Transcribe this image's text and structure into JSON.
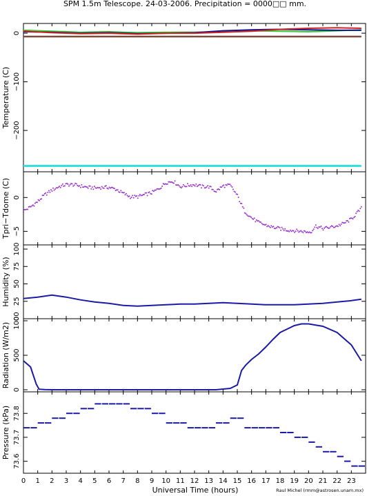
{
  "title": "SPM 1.5m Telescope. 24-03-2006. Precipitation = 0000□□ mm.",
  "credit": "Raul Michel (rmm@astrosen.unam.mx)",
  "colors": {
    "purple": "#9933cc",
    "blue": "#1a1aa6",
    "cyan": "#33e0e0",
    "green": "#33cc33",
    "red": "#cc2222",
    "darkblue": "#101090",
    "brown": "#7a4a3a"
  },
  "chart_data": [
    {
      "type": "line",
      "ylabel": "Temperature (C)",
      "xlim": [
        0,
        24
      ],
      "ylim": [
        -285,
        20
      ],
      "yticks": [
        0,
        -100,
        -200
      ],
      "yticklabels": [
        "0",
        "−100",
        "−200"
      ],
      "series": [
        {
          "color": "green",
          "x": [
            0,
            2,
            4,
            6,
            8,
            10,
            12,
            14,
            16,
            18,
            20,
            22,
            23.7
          ],
          "values": [
            6,
            4,
            2,
            3,
            1,
            2,
            2,
            3,
            5,
            4,
            3,
            5,
            7
          ]
        },
        {
          "color": "darkblue",
          "x": [
            0,
            2,
            4,
            6,
            8,
            10,
            12,
            14,
            16,
            18,
            20,
            22,
            23.7
          ],
          "values": [
            3,
            2,
            0,
            1,
            -1,
            0,
            1,
            5,
            7,
            8,
            7,
            6,
            6
          ]
        },
        {
          "color": "red",
          "x": [
            0,
            2,
            4,
            6,
            8,
            10,
            12,
            14,
            16,
            18,
            20,
            22,
            23.7
          ],
          "values": [
            4,
            1,
            -1,
            0,
            -2,
            0,
            0,
            2,
            4,
            8,
            10,
            11,
            10
          ]
        },
        {
          "color": "brown",
          "x": [
            0,
            23.7
          ],
          "values": [
            -7,
            -7
          ]
        },
        {
          "color": "cyan",
          "x": [
            0,
            23.7
          ],
          "values": [
            -273,
            -273
          ]
        }
      ]
    },
    {
      "type": "scatter",
      "ylabel": "Tpri−Tdome (C)",
      "xlim": [
        0,
        24
      ],
      "ylim": [
        -7,
        3.8
      ],
      "yticks": [
        0,
        -5
      ],
      "yticklabels": [
        "0",
        "−5"
      ],
      "series": [
        {
          "color": "purple",
          "x": [
            0,
            0.5,
            1,
            1.5,
            2,
            2.5,
            3,
            3.5,
            4,
            4.5,
            5,
            5.5,
            6,
            6.5,
            7,
            7.5,
            8,
            8.5,
            9,
            9.5,
            10,
            10.5,
            11,
            11.5,
            12,
            12.5,
            13,
            13.5,
            14,
            14.5,
            15,
            15.5,
            16,
            16.5,
            17,
            17.5,
            18,
            18.5,
            19,
            19.5,
            20,
            20.2,
            20.5,
            21,
            21.5,
            22,
            22.5,
            23,
            23.7
          ],
          "values": [
            -2,
            -1.4,
            -0.6,
            0.4,
            1.1,
            1.6,
            1.9,
            1.9,
            1.7,
            1.5,
            1.4,
            1.5,
            1.5,
            1.2,
            0.6,
            0.1,
            0.1,
            0.4,
            0.7,
            1.3,
            2.2,
            2.4,
            1.6,
            1.8,
            1.9,
            1.6,
            1.6,
            0.9,
            1.7,
            1.8,
            0.3,
            -2.0,
            -3.0,
            -3.7,
            -4.1,
            -4.4,
            -4.6,
            -4.8,
            -4.9,
            -5.0,
            -5.1,
            -5.0,
            -4.2,
            -4.6,
            -4.4,
            -4.2,
            -3.8,
            -3.2,
            -1.6
          ]
        }
      ]
    },
    {
      "type": "line",
      "ylabel": "Humidity (%)",
      "xlim": [
        0,
        24
      ],
      "ylim": [
        0,
        106
      ],
      "yticks": [
        0,
        25,
        50,
        75,
        100
      ],
      "yticklabels": [
        "0",
        "25",
        "50",
        "75",
        "100"
      ],
      "series": [
        {
          "color": "blue",
          "x": [
            0,
            1,
            2,
            3,
            4,
            5,
            6,
            7,
            8,
            9,
            10,
            11,
            12,
            13,
            14,
            15,
            16,
            17,
            18,
            19,
            20,
            21,
            22,
            23,
            23.7
          ],
          "values": [
            29,
            31,
            34,
            31,
            27,
            24,
            22,
            19,
            18,
            19,
            20,
            21,
            21,
            22,
            23,
            22,
            21,
            20,
            20,
            20,
            21,
            22,
            24,
            26,
            28
          ]
        }
      ]
    },
    {
      "type": "line",
      "ylabel": "Radiation (W/m2)",
      "xlim": [
        0,
        24
      ],
      "ylim": [
        -30,
        1030
      ],
      "yticks": [
        0,
        500,
        1000
      ],
      "yticklabels": [
        "0",
        "500",
        "1000"
      ],
      "series": [
        {
          "color": "blue",
          "x": [
            0,
            0.5,
            0.9,
            1.1,
            1.5,
            2,
            4,
            6,
            8,
            10,
            12,
            13.5,
            14.5,
            15,
            15.3,
            15.6,
            16,
            16.5,
            17,
            17.5,
            18,
            18.5,
            19,
            19.5,
            20,
            21,
            22,
            23,
            23.7
          ],
          "values": [
            420,
            330,
            80,
            8,
            2,
            0,
            0,
            0,
            0,
            0,
            0,
            0,
            20,
            70,
            280,
            360,
            440,
            520,
            620,
            730,
            830,
            880,
            930,
            955,
            955,
            920,
            830,
            650,
            420
          ]
        }
      ]
    },
    {
      "type": "scatter",
      "ylabel": "Pressure (kPa)",
      "xlim": [
        0,
        24
      ],
      "ylim": [
        73.55,
        73.89
      ],
      "yticks": [
        73.6,
        73.7,
        73.8
      ],
      "yticklabels": [
        "73.6",
        "73.7",
        "73.8"
      ],
      "series": [
        {
          "color": "blue",
          "x": [
            0,
            0.5,
            1,
            1.5,
            2,
            2.5,
            3,
            3.5,
            4,
            4.5,
            5,
            5.5,
            6,
            6.5,
            7,
            7.5,
            8,
            8.5,
            9,
            9.5,
            10,
            10.5,
            11,
            11.5,
            12,
            12.5,
            13,
            13.5,
            14,
            14.5,
            15,
            15.5,
            16,
            16.5,
            17,
            17.5,
            18,
            18.5,
            19,
            19.5,
            20,
            20.5,
            21,
            21.5,
            22,
            22.5,
            23,
            23.5
          ],
          "values": [
            73.74,
            73.74,
            73.76,
            73.76,
            73.78,
            73.78,
            73.8,
            73.8,
            73.82,
            73.82,
            73.84,
            73.84,
            73.84,
            73.84,
            73.84,
            73.82,
            73.82,
            73.82,
            73.8,
            73.8,
            73.76,
            73.76,
            73.76,
            73.74,
            73.74,
            73.74,
            73.74,
            73.76,
            73.76,
            73.78,
            73.78,
            73.74,
            73.74,
            73.74,
            73.74,
            73.74,
            73.72,
            73.72,
            73.7,
            73.7,
            73.68,
            73.66,
            73.64,
            73.64,
            73.62,
            73.6,
            73.58,
            73.58
          ]
        }
      ]
    }
  ],
  "x_axis": {
    "label": "Universal Time (hours)",
    "ticks": [
      0,
      1,
      2,
      3,
      4,
      5,
      6,
      7,
      8,
      9,
      10,
      11,
      12,
      13,
      14,
      15,
      16,
      17,
      18,
      19,
      20,
      21,
      22,
      23
    ]
  }
}
